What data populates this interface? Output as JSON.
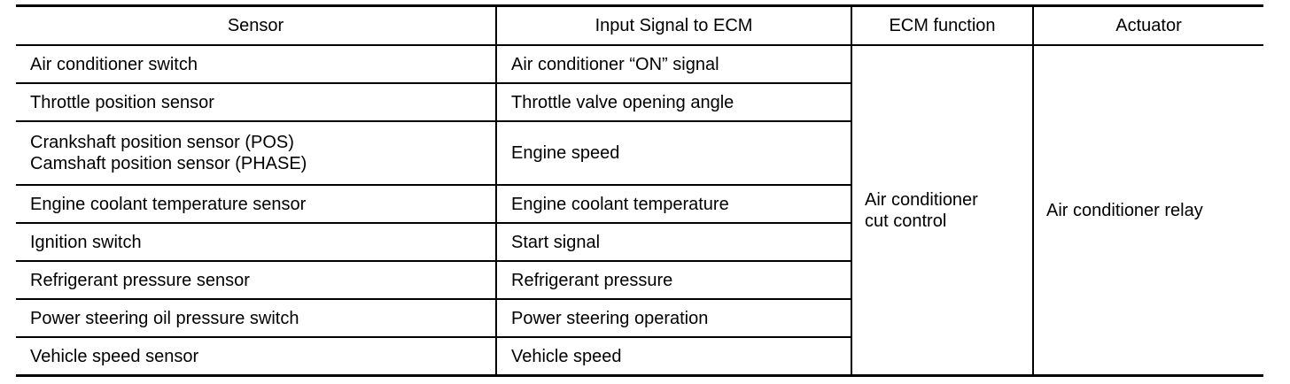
{
  "headers": [
    "Sensor",
    "Input Signal to ECM",
    "ECM function",
    "Actuator"
  ],
  "rows": [
    {
      "sensor": [
        "Air conditioner switch"
      ],
      "signal": "Air conditioner “ON” signal"
    },
    {
      "sensor": [
        "Throttle position sensor"
      ],
      "signal": "Throttle valve opening angle"
    },
    {
      "sensor": [
        "Crankshaft position sensor (POS)",
        "Camshaft position sensor (PHASE)"
      ],
      "signal": "Engine speed"
    },
    {
      "sensor": [
        "Engine coolant temperature sensor"
      ],
      "signal": "Engine coolant temperature"
    },
    {
      "sensor": [
        "Ignition switch"
      ],
      "signal": "Start signal"
    },
    {
      "sensor": [
        "Refrigerant pressure sensor"
      ],
      "signal": "Refrigerant pressure"
    },
    {
      "sensor": [
        "Power steering oil pressure switch"
      ],
      "signal": "Power steering operation"
    },
    {
      "sensor": [
        "Vehicle speed sensor"
      ],
      "signal": "Vehicle speed"
    }
  ],
  "ecm_function": [
    "Air conditioner",
    "cut control"
  ],
  "actuator": "Air conditioner relay"
}
